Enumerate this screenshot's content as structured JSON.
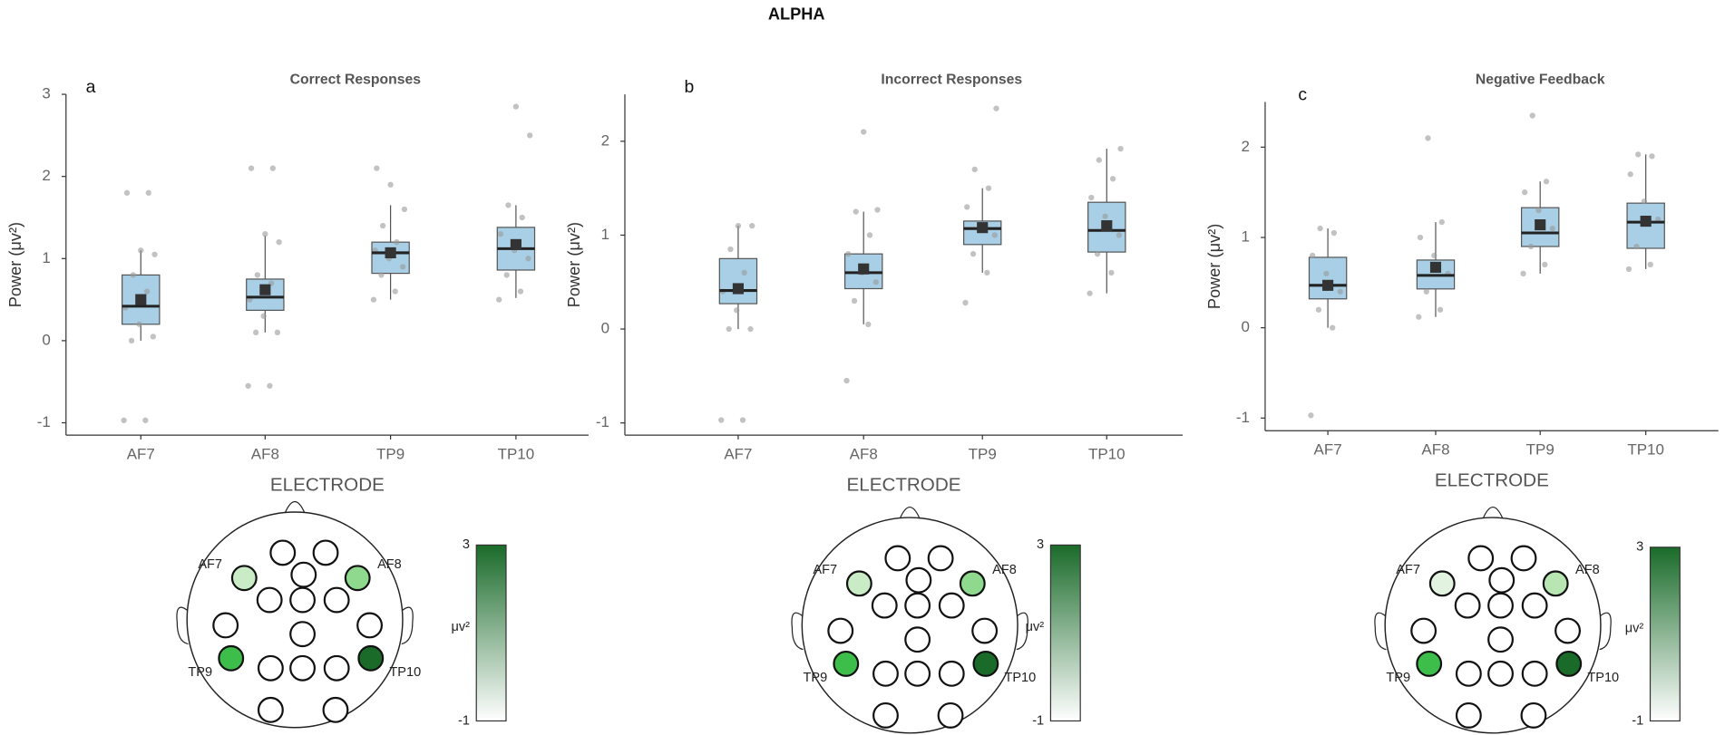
{
  "title": "ALPHA",
  "chart_data": [
    {
      "type": "box",
      "panel_label": "a",
      "title": "Correct Responses",
      "ylabel": "Power (μv²)",
      "xlabel": "ELECTRODE",
      "categories": [
        "AF7",
        "AF8",
        "TP9",
        "TP10"
      ],
      "ylim": [
        -1.15,
        3.0
      ],
      "yticks": [
        -1,
        0,
        1,
        2,
        3
      ],
      "box_color": "#a8cfe5",
      "boxes": [
        {
          "q1": 0.2,
          "median": 0.42,
          "q3": 0.8,
          "low": 0.0,
          "high": 1.1,
          "mean": 0.5,
          "points": [
            -0.97,
            -0.97,
            0.0,
            0.05,
            0.2,
            0.4,
            0.6,
            0.8,
            1.05,
            1.1,
            1.8,
            1.8
          ]
        },
        {
          "q1": 0.37,
          "median": 0.53,
          "q3": 0.75,
          "low": 0.1,
          "high": 1.28,
          "mean": 0.62,
          "points": [
            -0.55,
            -0.55,
            0.1,
            0.1,
            0.3,
            0.5,
            0.7,
            0.8,
            1.2,
            1.3,
            2.1,
            2.1
          ]
        },
        {
          "q1": 0.82,
          "median": 1.07,
          "q3": 1.2,
          "low": 0.5,
          "high": 1.65,
          "mean": 1.07,
          "points": [
            0.5,
            0.6,
            0.8,
            0.9,
            1.0,
            1.1,
            1.2,
            1.4,
            1.6,
            1.9,
            2.1
          ]
        },
        {
          "q1": 0.86,
          "median": 1.12,
          "q3": 1.38,
          "low": 0.52,
          "high": 1.65,
          "mean": 1.17,
          "points": [
            0.5,
            0.6,
            0.8,
            1.0,
            1.1,
            1.3,
            1.5,
            1.65,
            2.5,
            2.85
          ]
        }
      ],
      "topomap": {
        "electrodes": [
          {
            "label": "AF7",
            "color": "#c9ebc5"
          },
          {
            "label": "AF8",
            "color": "#8fd98e"
          },
          {
            "label": "TP9",
            "color": "#3dbd4a"
          },
          {
            "label": "TP10",
            "color": "#1a6b2a"
          }
        ],
        "colorbar": {
          "lim": [
            -1,
            3
          ],
          "ticks": [
            -1,
            3
          ],
          "label": "μv²",
          "colors": [
            "#ffffff",
            "#1a6b2a"
          ]
        }
      }
    },
    {
      "type": "box",
      "panel_label": "b",
      "title": "Incorrect Responses",
      "ylabel": "Power (μv²)",
      "xlabel": "ELECTRODE",
      "categories": [
        "AF7",
        "AF8",
        "TP9",
        "TP10"
      ],
      "ylim": [
        -1.13,
        2.5
      ],
      "yticks": [
        -1,
        0,
        1,
        2
      ],
      "box_color": "#a8cfe5",
      "boxes": [
        {
          "q1": 0.27,
          "median": 0.41,
          "q3": 0.75,
          "low": 0.0,
          "high": 1.1,
          "mean": 0.43,
          "points": [
            -0.97,
            -0.97,
            0.0,
            0.0,
            0.2,
            0.4,
            0.6,
            0.85,
            1.1,
            1.1
          ]
        },
        {
          "q1": 0.43,
          "median": 0.6,
          "q3": 0.8,
          "low": 0.05,
          "high": 1.25,
          "mean": 0.64,
          "points": [
            -0.55,
            0.05,
            0.3,
            0.5,
            0.6,
            0.8,
            1.0,
            1.25,
            1.27,
            2.1
          ]
        },
        {
          "q1": 0.9,
          "median": 1.07,
          "q3": 1.15,
          "low": 0.6,
          "high": 1.5,
          "mean": 1.08,
          "points": [
            0.28,
            0.6,
            0.8,
            1.0,
            1.1,
            1.3,
            1.5,
            1.7,
            2.35
          ]
        },
        {
          "q1": 0.82,
          "median": 1.05,
          "q3": 1.35,
          "low": 0.38,
          "high": 1.92,
          "mean": 1.1,
          "points": [
            0.38,
            0.6,
            0.8,
            1.0,
            1.2,
            1.4,
            1.6,
            1.8,
            1.92
          ]
        }
      ],
      "topomap": {
        "electrodes": [
          {
            "label": "AF7",
            "color": "#c9ebc5"
          },
          {
            "label": "AF8",
            "color": "#8fd98e"
          },
          {
            "label": "TP9",
            "color": "#3dbd4a"
          },
          {
            "label": "TP10",
            "color": "#1a6b2a"
          }
        ],
        "colorbar": {
          "lim": [
            -1,
            3
          ],
          "ticks": [
            -1,
            3
          ],
          "label": "μv²",
          "colors": [
            "#ffffff",
            "#1a6b2a"
          ]
        }
      }
    },
    {
      "type": "box",
      "panel_label": "c",
      "title": "Negative Feedback",
      "ylabel": "Power (μv²)",
      "xlabel": "ELECTRODE",
      "categories": [
        "AF7",
        "AF8",
        "TP9",
        "TP10"
      ],
      "ylim": [
        -1.14,
        2.5
      ],
      "yticks": [
        -1,
        0,
        1,
        2
      ],
      "box_color": "#a8cfe5",
      "boxes": [
        {
          "q1": 0.32,
          "median": 0.47,
          "q3": 0.78,
          "low": 0.0,
          "high": 1.1,
          "mean": 0.47,
          "points": [
            -0.97,
            0.0,
            0.2,
            0.4,
            0.6,
            0.8,
            1.05,
            1.1
          ]
        },
        {
          "q1": 0.43,
          "median": 0.58,
          "q3": 0.75,
          "low": 0.12,
          "high": 1.17,
          "mean": 0.67,
          "points": [
            0.12,
            0.2,
            0.4,
            0.6,
            0.8,
            1.0,
            1.17,
            2.1
          ]
        },
        {
          "q1": 0.9,
          "median": 1.05,
          "q3": 1.33,
          "low": 0.6,
          "high": 1.62,
          "mean": 1.14,
          "points": [
            0.6,
            0.7,
            0.9,
            1.1,
            1.3,
            1.5,
            1.62,
            2.35
          ]
        },
        {
          "q1": 0.88,
          "median": 1.17,
          "q3": 1.38,
          "low": 0.65,
          "high": 1.92,
          "mean": 1.18,
          "points": [
            0.65,
            0.7,
            0.9,
            1.2,
            1.4,
            1.7,
            1.9,
            1.92
          ]
        }
      ],
      "topomap": {
        "electrodes": [
          {
            "label": "AF7",
            "color": "#e2f4df"
          },
          {
            "label": "AF8",
            "color": "#b7e6b3"
          },
          {
            "label": "TP9",
            "color": "#3dbd4a"
          },
          {
            "label": "TP10",
            "color": "#1a6b2a"
          }
        ],
        "colorbar": {
          "lim": [
            -1,
            3
          ],
          "ticks": [
            -1,
            3
          ],
          "label": "μv²",
          "colors": [
            "#ffffff",
            "#1a6b2a"
          ]
        }
      }
    }
  ]
}
